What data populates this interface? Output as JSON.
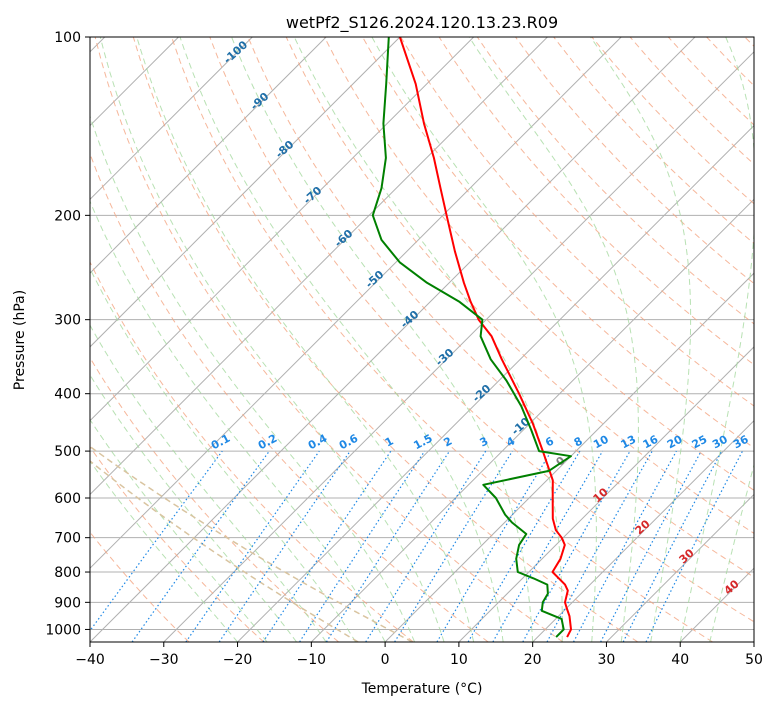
{
  "chart_data": {
    "type": "line",
    "title": "wetPf2_S126.2024.120.13.23.R09",
    "xlabel": "Temperature (°C)",
    "ylabel": "Pressure (hPa)",
    "xlim": [
      -40,
      50
    ],
    "ylim": [
      1050,
      100
    ],
    "y_scale": "log",
    "grid": true,
    "x_ticks": [
      -40,
      -30,
      -20,
      -10,
      0,
      10,
      20,
      30,
      40,
      50
    ],
    "x_tick_labels": [
      "−40",
      "−30",
      "−20",
      "−10",
      "0",
      "10",
      "20",
      "30",
      "40",
      "50"
    ],
    "y_ticks": [
      100,
      200,
      300,
      400,
      500,
      600,
      700,
      800,
      900,
      1000
    ],
    "y_tick_labels": [
      "100",
      "200",
      "300",
      "400",
      "500",
      "600",
      "700",
      "800",
      "900",
      "1000"
    ],
    "series": [
      {
        "role": "temperature",
        "color": "#ff0000",
        "points": [
          {
            "p": 1030,
            "t": 24.0
          },
          {
            "p": 1000,
            "t": 23.5
          },
          {
            "p": 950,
            "t": 21.5
          },
          {
            "p": 920,
            "t": 20.0
          },
          {
            "p": 900,
            "t": 19.0
          },
          {
            "p": 860,
            "t": 17.8
          },
          {
            "p": 840,
            "t": 16.6
          },
          {
            "p": 800,
            "t": 13.2
          },
          {
            "p": 760,
            "t": 12.5
          },
          {
            "p": 720,
            "t": 11.2
          },
          {
            "p": 700,
            "t": 9.8
          },
          {
            "p": 680,
            "t": 8.0
          },
          {
            "p": 650,
            "t": 6.0
          },
          {
            "p": 600,
            "t": 3.2
          },
          {
            "p": 560,
            "t": 0.8
          },
          {
            "p": 500,
            "t": -4.5
          },
          {
            "p": 450,
            "t": -9.5
          },
          {
            "p": 400,
            "t": -15.5
          },
          {
            "p": 350,
            "t": -22.5
          },
          {
            "p": 320,
            "t": -27.0
          },
          {
            "p": 300,
            "t": -31.0
          },
          {
            "p": 280,
            "t": -34.5
          },
          {
            "p": 260,
            "t": -38.0
          },
          {
            "p": 230,
            "t": -43.5
          },
          {
            "p": 200,
            "t": -49.5
          },
          {
            "p": 180,
            "t": -54.0
          },
          {
            "p": 160,
            "t": -59.0
          },
          {
            "p": 140,
            "t": -65.0
          },
          {
            "p": 120,
            "t": -71.5
          },
          {
            "p": 100,
            "t": -80.0
          }
        ]
      },
      {
        "role": "dewpoint",
        "color": "#008000",
        "points": [
          {
            "p": 1030,
            "t": 22.5
          },
          {
            "p": 1000,
            "t": 22.5
          },
          {
            "p": 960,
            "t": 20.8
          },
          {
            "p": 930,
            "t": 17.0
          },
          {
            "p": 900,
            "t": 16.0
          },
          {
            "p": 870,
            "t": 15.5
          },
          {
            "p": 840,
            "t": 14.2
          },
          {
            "p": 820,
            "t": 11.5
          },
          {
            "p": 800,
            "t": 8.5
          },
          {
            "p": 760,
            "t": 6.5
          },
          {
            "p": 720,
            "t": 5.0
          },
          {
            "p": 690,
            "t": 4.5
          },
          {
            "p": 660,
            "t": 1.0
          },
          {
            "p": 640,
            "t": -1.0
          },
          {
            "p": 600,
            "t": -4.5
          },
          {
            "p": 570,
            "t": -8.0
          },
          {
            "p": 540,
            "t": -1.0
          },
          {
            "p": 510,
            "t": 0.0
          },
          {
            "p": 500,
            "t": -5.0
          },
          {
            "p": 460,
            "t": -9.0
          },
          {
            "p": 420,
            "t": -13.5
          },
          {
            "p": 380,
            "t": -19.0
          },
          {
            "p": 350,
            "t": -24.0
          },
          {
            "p": 320,
            "t": -28.5
          },
          {
            "p": 300,
            "t": -30.5
          },
          {
            "p": 280,
            "t": -36.0
          },
          {
            "p": 260,
            "t": -43.0
          },
          {
            "p": 240,
            "t": -49.5
          },
          {
            "p": 220,
            "t": -55.0
          },
          {
            "p": 200,
            "t": -59.5
          },
          {
            "p": 180,
            "t": -62.0
          },
          {
            "p": 160,
            "t": -65.5
          },
          {
            "p": 140,
            "t": -70.5
          },
          {
            "p": 120,
            "t": -75.5
          },
          {
            "p": 100,
            "t": -81.5
          }
        ]
      }
    ],
    "mixing_ratio_labels": [
      "0.1",
      "0.2",
      "0.4",
      "0.6",
      "1",
      "1.5",
      "2",
      "3",
      "4",
      "6",
      "8",
      "10",
      "13",
      "16",
      "20",
      "25",
      "30",
      "36"
    ],
    "mixing_ratio_values": [
      0.1,
      0.2,
      0.4,
      0.6,
      1,
      1.5,
      2,
      3,
      4,
      6,
      8,
      10,
      13,
      16,
      20,
      25,
      30,
      36
    ],
    "dry_adiabat_labels": [
      "-100",
      "-90",
      "-80",
      "-70",
      "-60",
      "-50",
      "-40",
      "-30",
      "-20",
      "-10"
    ],
    "moist_adiabat_labels": [
      "0",
      "10",
      "20",
      "30",
      "40"
    ],
    "colors": {
      "temperature": "#ff0000",
      "dewpoint": "#008000",
      "isotherm_grid": "#b0b0b0",
      "isobar_grid": "#b0b0b0",
      "dry_adiabat": "#f4a582",
      "moist_adiabat": "#a6d9a0",
      "mixing_ratio": "#1e88e5",
      "ml_curve": "#d9c4a0",
      "dry_label": "#1f6fa8",
      "moist_label": "#d62728",
      "moist_label_zero": "#808080"
    }
  }
}
